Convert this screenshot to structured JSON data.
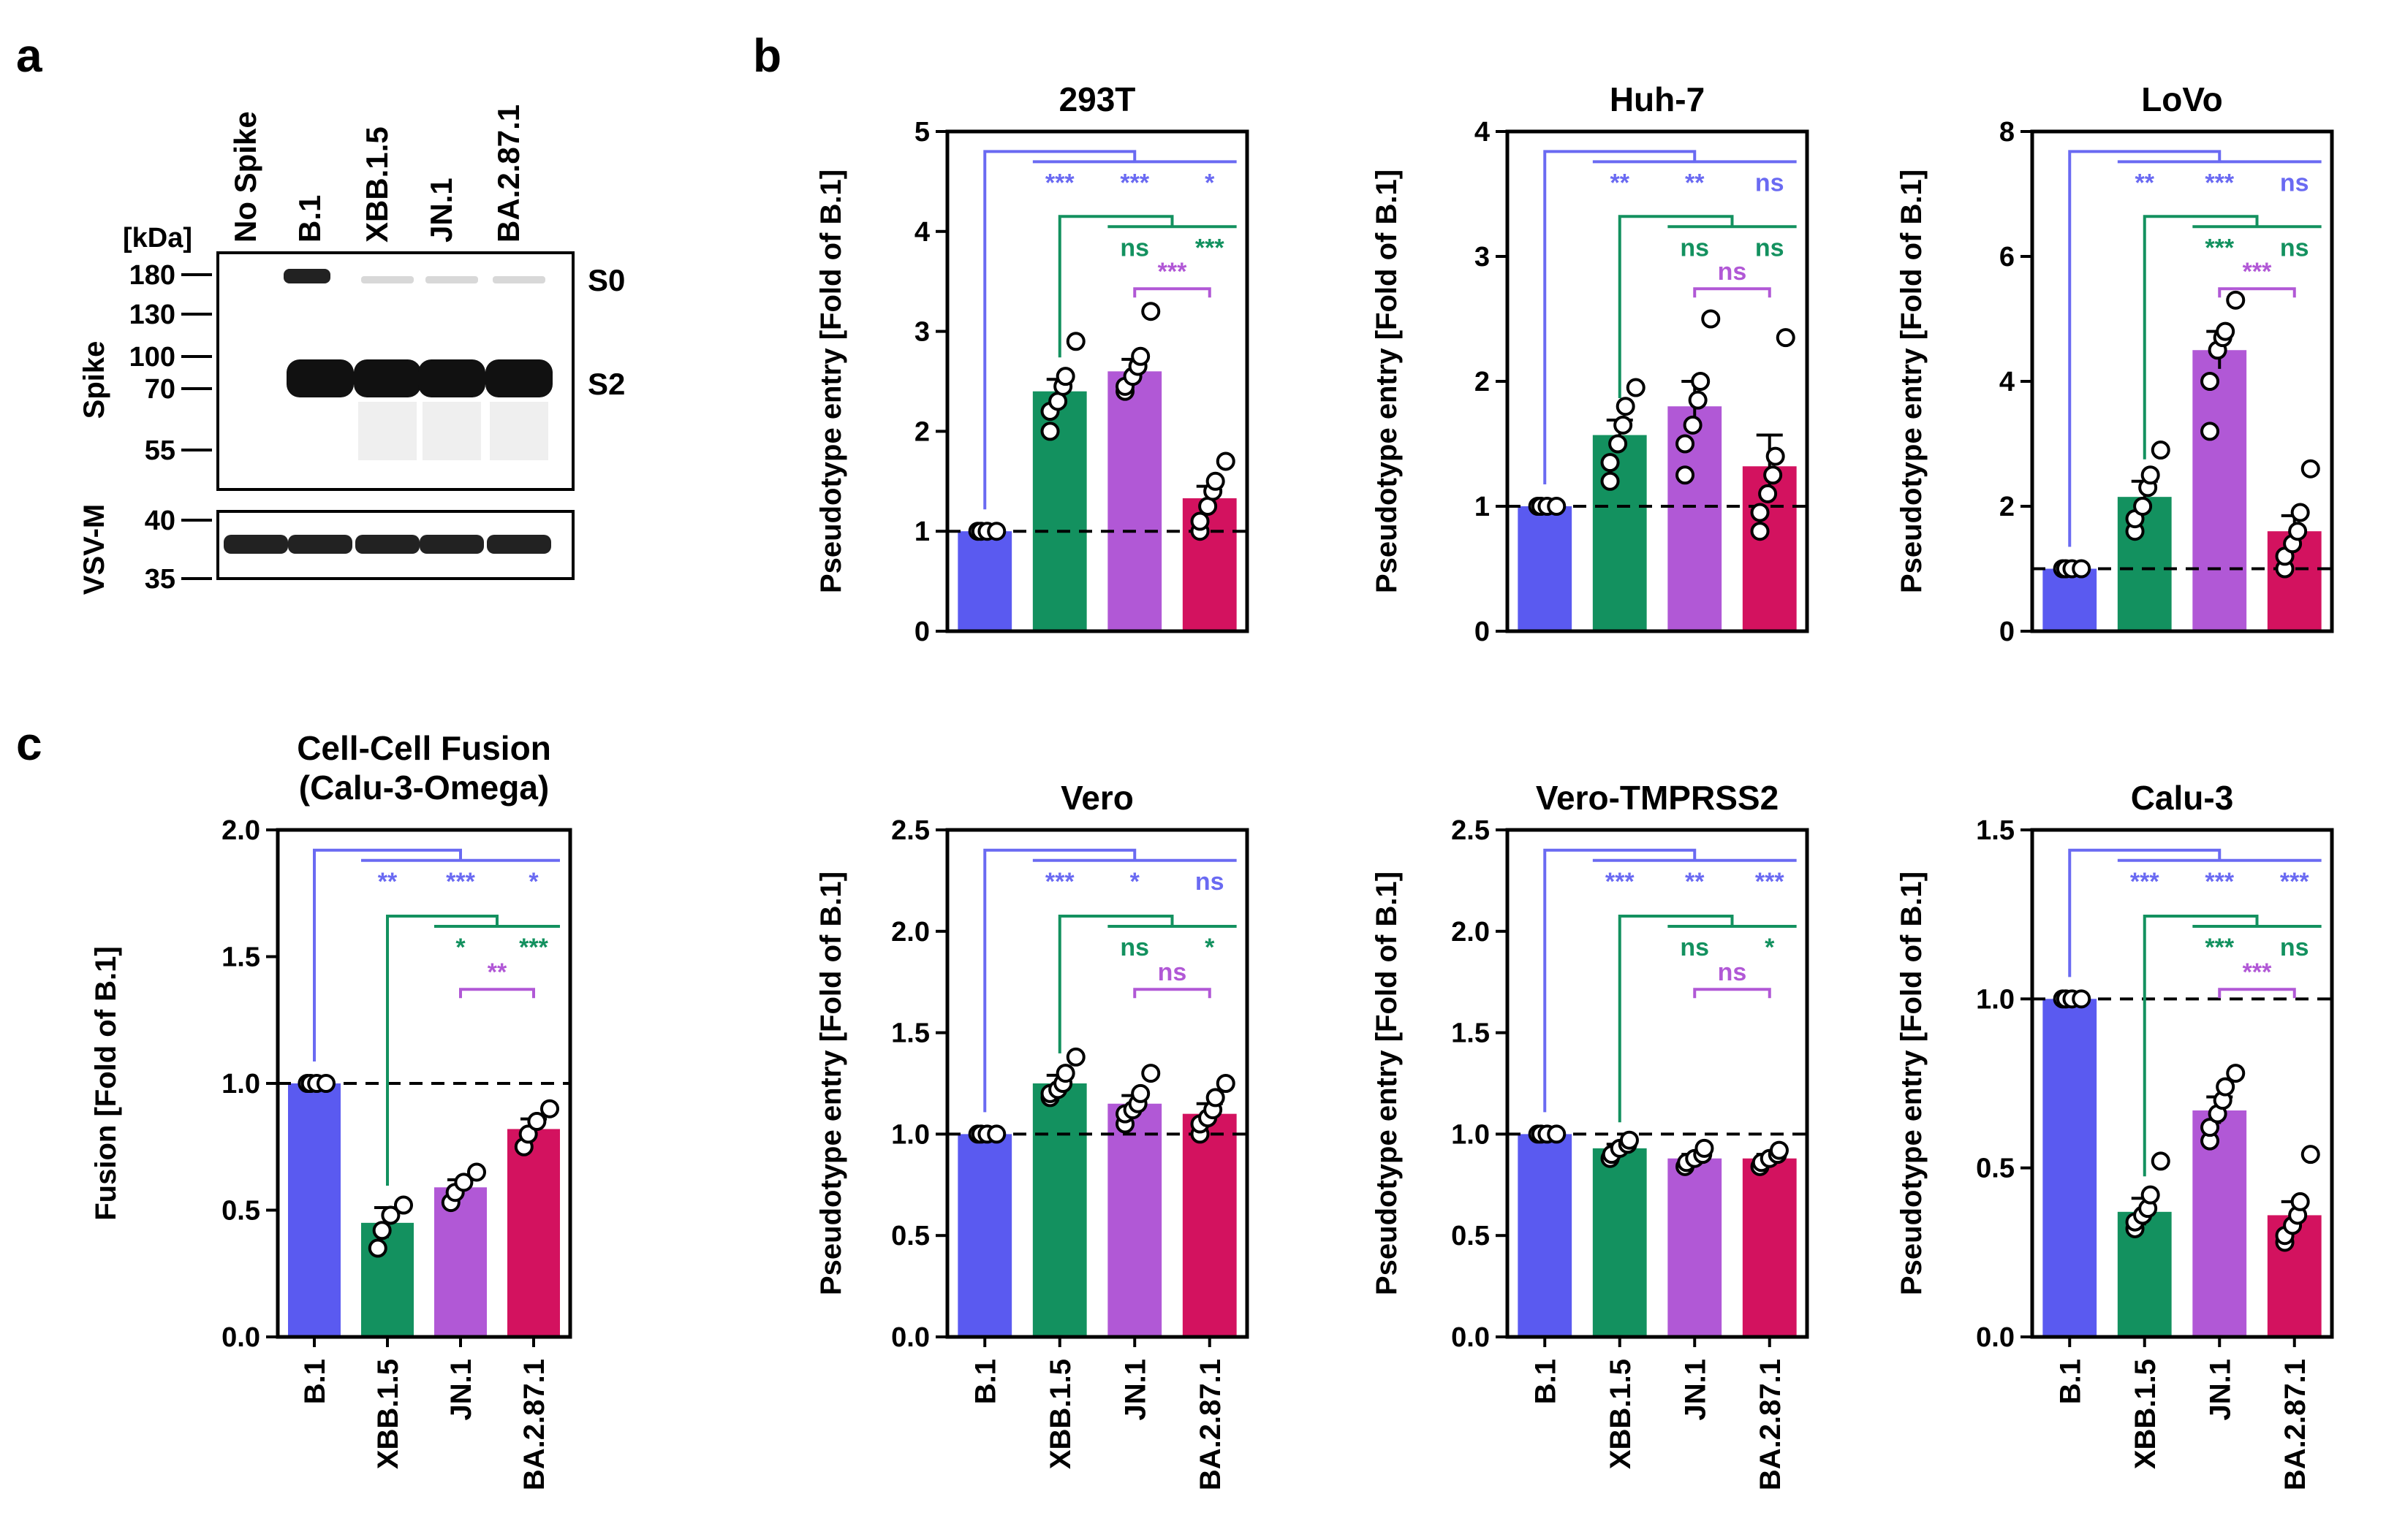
{
  "panel_labels": {
    "a": "a",
    "b": "b",
    "c": "c"
  },
  "colors": {
    "B.1": "#5a5af0",
    "XBB.1.5": "#13915f",
    "JN.1": "#b158d6",
    "BA.2.87.1": "#d3125f",
    "sig_blue": "#6a6af2",
    "sig_green": "#13915f",
    "sig_purple": "#b158d6"
  },
  "blot": {
    "lanes": [
      "No Spike",
      "B.1",
      "XBB.1.5",
      "JN.1",
      "BA.2.87.1"
    ],
    "kda_label": "[kDa]",
    "upper_ticks": [
      "180",
      "130",
      "100",
      "70",
      "55"
    ],
    "lower_ticks": [
      "40",
      "35"
    ],
    "upper_label": "Spike",
    "lower_label": "VSV-M",
    "band_labels": [
      "S0",
      "S2"
    ]
  },
  "chart_data": [
    {
      "id": "fusion",
      "type": "bar",
      "title": "Cell-Cell Fusion",
      "subtitle": "(Calu-3-Omega)",
      "ylabel": "Fusion [Fold of B.1]",
      "ylim": [
        0,
        2.0
      ],
      "yticks": [
        "0.0",
        "0.5",
        "1.0",
        "1.5",
        "2.0"
      ],
      "categories": [
        "B.1",
        "XBB.1.5",
        "JN.1",
        "BA.2.87.1"
      ],
      "values": [
        1.0,
        0.45,
        0.59,
        0.82
      ],
      "errors": [
        0,
        0.06,
        0.03,
        0.04
      ],
      "points": [
        [
          1.0,
          1.0,
          1.0,
          1.0
        ],
        [
          0.35,
          0.42,
          0.48,
          0.52
        ],
        [
          0.53,
          0.57,
          0.61,
          0.65
        ],
        [
          0.75,
          0.8,
          0.85,
          0.9
        ]
      ],
      "reference_line": 1.0,
      "comparisons": [
        {
          "group": "blue",
          "from": 0,
          "labels": [
            "**",
            "***",
            "*"
          ]
        },
        {
          "group": "green",
          "from": 1,
          "labels": [
            "*",
            "***"
          ]
        },
        {
          "group": "purple",
          "labels": [
            "**"
          ]
        }
      ]
    },
    {
      "id": "293T",
      "type": "bar",
      "title": "293T",
      "ylabel": "Pseudotype entry [Fold of B.1]",
      "ylim": [
        0,
        5
      ],
      "yticks": [
        "0",
        "1",
        "2",
        "3",
        "4",
        "5"
      ],
      "categories": [
        "B.1",
        "XBB.1.5",
        "JN.1",
        "BA.2.87.1"
      ],
      "values": [
        1.0,
        2.4,
        2.6,
        1.33
      ],
      "errors": [
        0,
        0.12,
        0.12,
        0.12
      ],
      "points": [
        [
          1.0,
          1.0,
          1.0,
          1.0
        ],
        [
          2.0,
          2.2,
          2.3,
          2.45,
          2.55,
          2.9
        ],
        [
          2.4,
          2.45,
          2.55,
          2.65,
          2.75,
          3.2
        ],
        [
          1.0,
          1.1,
          1.25,
          1.4,
          1.5,
          1.7
        ]
      ],
      "reference_line": 1.0,
      "comparisons": [
        {
          "group": "blue",
          "from": 0,
          "labels": [
            "***",
            "***",
            "*"
          ]
        },
        {
          "group": "green",
          "from": 1,
          "labels": [
            "ns",
            "***"
          ]
        },
        {
          "group": "purple",
          "labels": [
            "***"
          ]
        }
      ]
    },
    {
      "id": "Huh-7",
      "type": "bar",
      "title": "Huh-7",
      "ylabel": "Pseudotype entry [Fold of B.1]",
      "ylim": [
        0,
        4
      ],
      "yticks": [
        "0",
        "1",
        "2",
        "3",
        "4"
      ],
      "categories": [
        "B.1",
        "XBB.1.5",
        "JN.1",
        "BA.2.87.1"
      ],
      "values": [
        1.0,
        1.57,
        1.8,
        1.32
      ],
      "errors": [
        0,
        0.12,
        0.2,
        0.25
      ],
      "points": [
        [
          1.0,
          1.0,
          1.0,
          1.0
        ],
        [
          1.2,
          1.35,
          1.5,
          1.65,
          1.8,
          1.95
        ],
        [
          1.25,
          1.5,
          1.65,
          1.85,
          2.0,
          2.5
        ],
        [
          0.8,
          0.95,
          1.1,
          1.25,
          1.4,
          2.35
        ]
      ],
      "reference_line": 1.0,
      "comparisons": [
        {
          "group": "blue",
          "from": 0,
          "labels": [
            "**",
            "**",
            "ns"
          ]
        },
        {
          "group": "green",
          "from": 1,
          "labels": [
            "ns",
            "ns"
          ]
        },
        {
          "group": "purple",
          "labels": [
            "ns"
          ]
        }
      ]
    },
    {
      "id": "LoVo",
      "type": "bar",
      "title": "LoVo",
      "ylabel": "Pseudotype entry [Fold of B.1]",
      "ylim": [
        0,
        8
      ],
      "yticks": [
        "0",
        "2",
        "4",
        "6",
        "8"
      ],
      "categories": [
        "B.1",
        "XBB.1.5",
        "JN.1",
        "BA.2.87.1"
      ],
      "values": [
        1.0,
        2.15,
        4.5,
        1.6
      ],
      "errors": [
        0,
        0.25,
        0.3,
        0.25
      ],
      "points": [
        [
          1.0,
          1.0,
          1.0,
          1.0
        ],
        [
          1.6,
          1.8,
          2.0,
          2.3,
          2.5,
          2.9
        ],
        [
          3.2,
          4.0,
          4.5,
          4.7,
          4.8,
          5.3
        ],
        [
          1.0,
          1.2,
          1.4,
          1.6,
          1.9,
          2.6
        ]
      ],
      "reference_line": 1.0,
      "comparisons": [
        {
          "group": "blue",
          "from": 0,
          "labels": [
            "**",
            "***",
            "ns"
          ]
        },
        {
          "group": "green",
          "from": 1,
          "labels": [
            "***",
            "ns"
          ]
        },
        {
          "group": "purple",
          "labels": [
            "***"
          ]
        }
      ]
    },
    {
      "id": "Vero",
      "type": "bar",
      "title": "Vero",
      "ylabel": "Pseudotype entry [Fold of B.1]",
      "ylim": [
        0,
        2.5
      ],
      "yticks": [
        "0.0",
        "0.5",
        "1.0",
        "1.5",
        "2.0",
        "2.5"
      ],
      "categories": [
        "B.1",
        "XBB.1.5",
        "JN.1",
        "BA.2.87.1"
      ],
      "values": [
        1.0,
        1.25,
        1.15,
        1.1
      ],
      "errors": [
        0,
        0.04,
        0.04,
        0.05
      ],
      "points": [
        [
          1.0,
          1.0,
          1.0,
          1.0
        ],
        [
          1.18,
          1.2,
          1.22,
          1.25,
          1.3,
          1.38
        ],
        [
          1.05,
          1.1,
          1.12,
          1.15,
          1.2,
          1.3
        ],
        [
          1.0,
          1.05,
          1.08,
          1.12,
          1.18,
          1.25
        ]
      ],
      "reference_line": 1.0,
      "comparisons": [
        {
          "group": "blue",
          "from": 0,
          "labels": [
            "***",
            "*",
            "ns"
          ]
        },
        {
          "group": "green",
          "from": 1,
          "labels": [
            "ns",
            "*"
          ]
        },
        {
          "group": "purple",
          "labels": [
            "ns"
          ]
        }
      ]
    },
    {
      "id": "Vero-TMPRSS2",
      "type": "bar",
      "title": "Vero-TMPRSS2",
      "ylabel": "Pseudotype entry [Fold of B.1]",
      "ylim": [
        0,
        2.5
      ],
      "yticks": [
        "0.0",
        "0.5",
        "1.0",
        "1.5",
        "2.0",
        "2.5"
      ],
      "categories": [
        "B.1",
        "XBB.1.5",
        "JN.1",
        "BA.2.87.1"
      ],
      "values": [
        1.0,
        0.93,
        0.88,
        0.88
      ],
      "errors": [
        0,
        0.02,
        0.02,
        0.02
      ],
      "points": [
        [
          1.0,
          1.0,
          1.0,
          1.0
        ],
        [
          0.88,
          0.9,
          0.93,
          0.95,
          0.97
        ],
        [
          0.84,
          0.86,
          0.88,
          0.9,
          0.93
        ],
        [
          0.84,
          0.86,
          0.88,
          0.9,
          0.92
        ]
      ],
      "reference_line": 1.0,
      "comparisons": [
        {
          "group": "blue",
          "from": 0,
          "labels": [
            "***",
            "**",
            "***"
          ]
        },
        {
          "group": "green",
          "from": 1,
          "labels": [
            "ns",
            "*"
          ]
        },
        {
          "group": "purple",
          "labels": [
            "ns"
          ]
        }
      ]
    },
    {
      "id": "Calu-3",
      "type": "bar",
      "title": "Calu-3",
      "ylabel": "Pseudotype entry [Fold of B.1]",
      "ylim": [
        0,
        1.5
      ],
      "yticks": [
        "0.0",
        "0.5",
        "1.0",
        "1.5"
      ],
      "categories": [
        "B.1",
        "XBB.1.5",
        "JN.1",
        "BA.2.87.1"
      ],
      "values": [
        1.0,
        0.37,
        0.67,
        0.36
      ],
      "errors": [
        0,
        0.04,
        0.04,
        0.04
      ],
      "points": [
        [
          1.0,
          1.0,
          1.0,
          1.0
        ],
        [
          0.32,
          0.34,
          0.36,
          0.38,
          0.42,
          0.52
        ],
        [
          0.58,
          0.62,
          0.66,
          0.7,
          0.74,
          0.78
        ],
        [
          0.28,
          0.3,
          0.33,
          0.36,
          0.4,
          0.54
        ]
      ],
      "reference_line": 1.0,
      "comparisons": [
        {
          "group": "blue",
          "from": 0,
          "labels": [
            "***",
            "***",
            "***"
          ]
        },
        {
          "group": "green",
          "from": 1,
          "labels": [
            "***",
            "ns"
          ]
        },
        {
          "group": "purple",
          "labels": [
            "***"
          ]
        }
      ]
    }
  ]
}
